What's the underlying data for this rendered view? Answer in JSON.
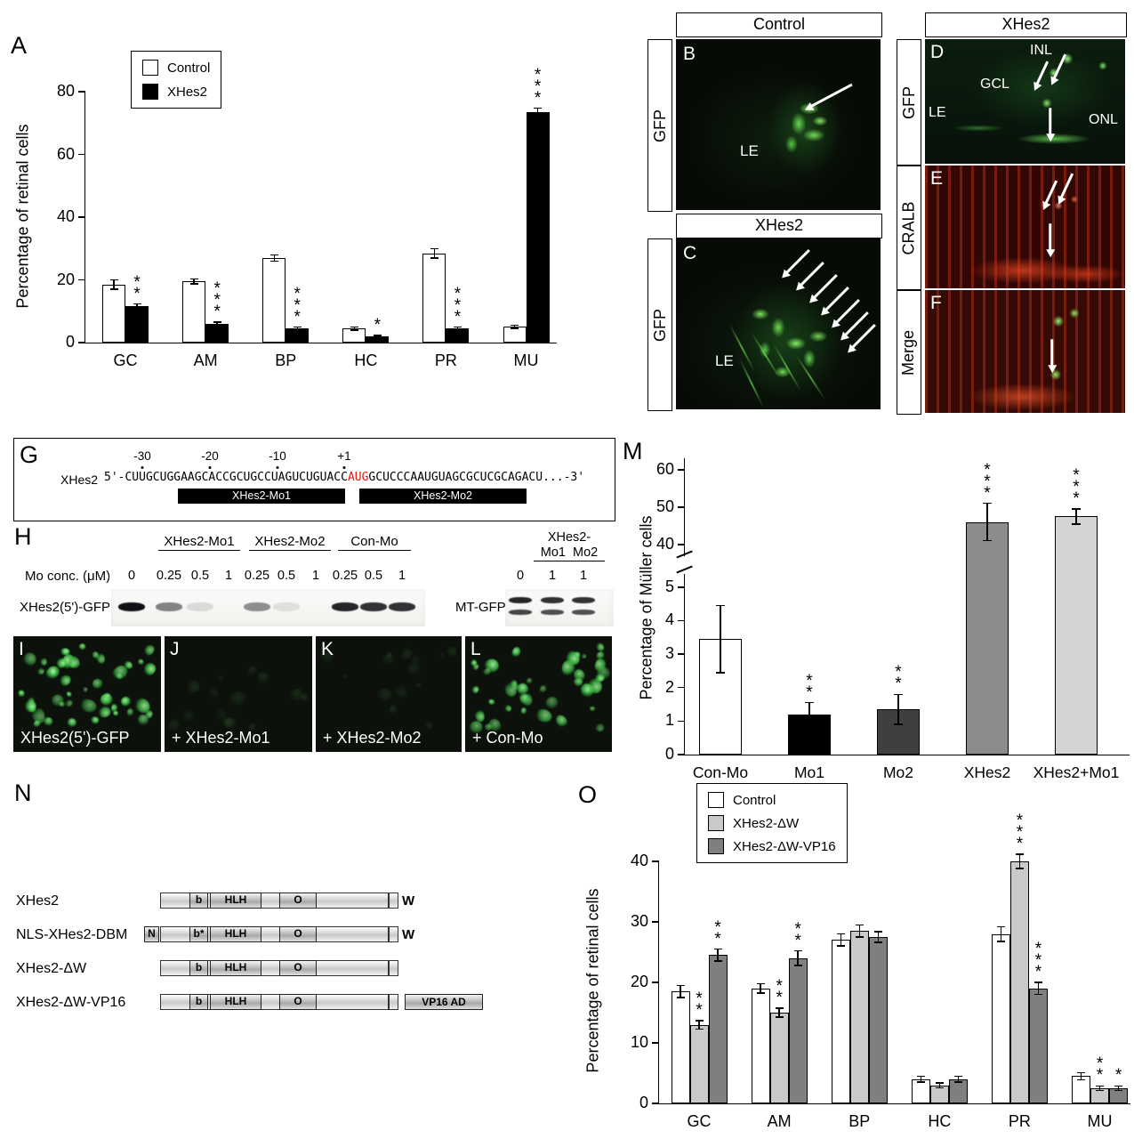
{
  "panelA": {
    "letter": "A",
    "ylabel": "Percentage of retinal cells",
    "chart": {
      "type": "bar",
      "categories": [
        "GC",
        "AM",
        "BP",
        "HC",
        "PR",
        "MU"
      ],
      "yticks": [
        0,
        20,
        40,
        60,
        80
      ],
      "ylim": [
        0,
        80
      ],
      "series": [
        {
          "name": "Control",
          "color": "#ffffff",
          "values": [
            18.5,
            19.5,
            27,
            4.5,
            28.5,
            5
          ],
          "errors": [
            1.5,
            0.8,
            1,
            0.5,
            1.5,
            0.5
          ]
        },
        {
          "name": "XHes2",
          "color": "#000000",
          "values": [
            11.5,
            6,
            4.5,
            2,
            4.5,
            73.5
          ],
          "errors": [
            0.8,
            0.5,
            0.4,
            0.3,
            0.4,
            1.2
          ]
        }
      ],
      "significance": [
        {
          "category": "GC",
          "series": 1,
          "stars": "**"
        },
        {
          "category": "AM",
          "series": 1,
          "stars": "***"
        },
        {
          "category": "BP",
          "series": 1,
          "stars": "***"
        },
        {
          "category": "HC",
          "series": 1,
          "stars": "*"
        },
        {
          "category": "PR",
          "series": 1,
          "stars": "***"
        },
        {
          "category": "MU",
          "series": 1,
          "stars": "***"
        }
      ]
    }
  },
  "panelB": {
    "letter": "B",
    "header": "Control",
    "side": "GFP",
    "labels": {
      "le": "LE"
    }
  },
  "panelC": {
    "letter": "C",
    "header": "XHes2",
    "side": "GFP",
    "labels": {
      "le": "LE"
    }
  },
  "panelD": {
    "letter": "D",
    "header": "XHes2",
    "side": "GFP",
    "labels": {
      "inl": "INL",
      "gcl": "GCL",
      "le": "LE",
      "onl": "ONL"
    }
  },
  "panelE": {
    "letter": "E",
    "side": "CRALB"
  },
  "panelF": {
    "letter": "F",
    "side": "Merge"
  },
  "panelG": {
    "letter": "G",
    "gene": "XHes2",
    "positions": [
      "-30",
      "-20",
      "-10",
      "+1"
    ],
    "seq_before": "5'-CUUGCUGGAAGCACCGCUGCCUAGUCUGUACC",
    "seq_aug": "AUG",
    "seq_after": "GCUCCCAAUGUAGCGCUCGCAGACU...-3'",
    "aug_color": "#e8160c",
    "mo1": "XHes2-Mo1",
    "mo2": "XHes2-Mo2"
  },
  "panelH": {
    "letter": "H",
    "groups": [
      {
        "label": "XHes2-Mo1"
      },
      {
        "label": "XHes2-Mo2"
      },
      {
        "label": "Con-Mo"
      }
    ],
    "conc_label": "Mo conc. (μM)",
    "concs": [
      "0",
      "0.25",
      "0.5",
      "1",
      "0.25",
      "0.5",
      "1",
      "0.25",
      "0.5",
      "1"
    ],
    "row_label": "XHes2(5')-GFP",
    "right_label_line1": "XHes2-",
    "right_label_line2": "Mo1  Mo2",
    "right_concs": [
      "0",
      "1",
      "1"
    ],
    "mt_label": "MT-GFP",
    "band_intensities": [
      1,
      0.5,
      0.12,
      0,
      0.45,
      0.1,
      0,
      0.9,
      0.85,
      0.85
    ],
    "mt_band_intensities": [
      0.9,
      0.85,
      0.85
    ]
  },
  "panelI": {
    "letter": "I",
    "label": "XHes2(5')-GFP"
  },
  "panelJ": {
    "letter": "J",
    "label": "+ XHes2-Mo1"
  },
  "panelK": {
    "letter": "K",
    "label": "+ XHes2-Mo2"
  },
  "panelL": {
    "letter": "L",
    "label": "+ Con-Mo"
  },
  "panelM": {
    "letter": "M",
    "ylabel": "Percentage of Müller cells",
    "chart": {
      "type": "bar",
      "yticks_lower": [
        0,
        1,
        2,
        3,
        4,
        5
      ],
      "yticks_upper": [
        40,
        50,
        60
      ],
      "axis_break": true,
      "bars": [
        {
          "label": "Con-Mo",
          "color": "#ffffff",
          "value": 3.45,
          "error": 1.0,
          "stars": ""
        },
        {
          "label": "Mo1",
          "color": "#000000",
          "value": 1.2,
          "error": 0.35,
          "stars": "**"
        },
        {
          "label": "Mo2",
          "color": "#3f3f3f",
          "value": 1.35,
          "error": 0.45,
          "stars": "**"
        },
        {
          "label": "XHes2",
          "color": "#8c8c8c",
          "value": 46,
          "error": 5,
          "stars": "***"
        },
        {
          "label": "XHes2+Mo1",
          "color": "#d4d4d4",
          "value": 47.5,
          "error": 2,
          "stars": "***"
        }
      ]
    }
  },
  "panelN": {
    "letter": "N",
    "constructs": [
      {
        "label": "XHes2",
        "nls": null,
        "domains": [
          "b",
          "HLH",
          "O"
        ],
        "w": "W",
        "tail": null
      },
      {
        "label": "NLS-XHes2-DBM",
        "nls": "N",
        "domains": [
          "b*",
          "HLH",
          "O"
        ],
        "w": "W",
        "tail": null
      },
      {
        "label": "XHes2-ΔW",
        "nls": null,
        "domains": [
          "b",
          "HLH",
          "O"
        ],
        "w": null,
        "tail": null
      },
      {
        "label": "XHes2-ΔW-VP16",
        "nls": null,
        "domains": [
          "b",
          "HLH",
          "O"
        ],
        "w": null,
        "tail": "VP16 AD"
      }
    ]
  },
  "panelO": {
    "letter": "O",
    "ylabel": "Percentage of retinal cells",
    "chart": {
      "type": "bar",
      "categories": [
        "GC",
        "AM",
        "BP",
        "HC",
        "PR",
        "MU"
      ],
      "yticks": [
        0,
        10,
        20,
        30,
        40
      ],
      "ylim": [
        0,
        40
      ],
      "series": [
        {
          "name": "Control",
          "color": "#ffffff",
          "values": [
            18.5,
            19,
            27,
            4,
            28,
            4.5
          ],
          "errors": [
            1,
            0.8,
            1,
            0.5,
            1.2,
            0.6
          ]
        },
        {
          "name": "XHes2-ΔW",
          "color": "#c9c9c9",
          "values": [
            13,
            15,
            28.5,
            3,
            40,
            2.5
          ],
          "errors": [
            0.7,
            0.7,
            1,
            0.4,
            1.2,
            0.4
          ]
        },
        {
          "name": "XHes2-ΔW-VP16",
          "color": "#7f7f7f",
          "values": [
            24.5,
            24,
            27.5,
            4,
            19,
            2.5
          ],
          "errors": [
            1,
            1.2,
            0.9,
            0.5,
            1,
            0.4
          ]
        }
      ],
      "significance": [
        {
          "category": "GC",
          "series": 1,
          "stars": "**"
        },
        {
          "category": "GC",
          "series": 2,
          "stars": "**"
        },
        {
          "category": "AM",
          "series": 1,
          "stars": "**"
        },
        {
          "category": "AM",
          "series": 2,
          "stars": "**"
        },
        {
          "category": "PR",
          "series": 1,
          "stars": "***"
        },
        {
          "category": "PR",
          "series": 2,
          "stars": "***"
        },
        {
          "category": "MU",
          "series": 1,
          "stars": "**"
        },
        {
          "category": "MU",
          "series": 2,
          "stars": "*"
        }
      ]
    }
  }
}
